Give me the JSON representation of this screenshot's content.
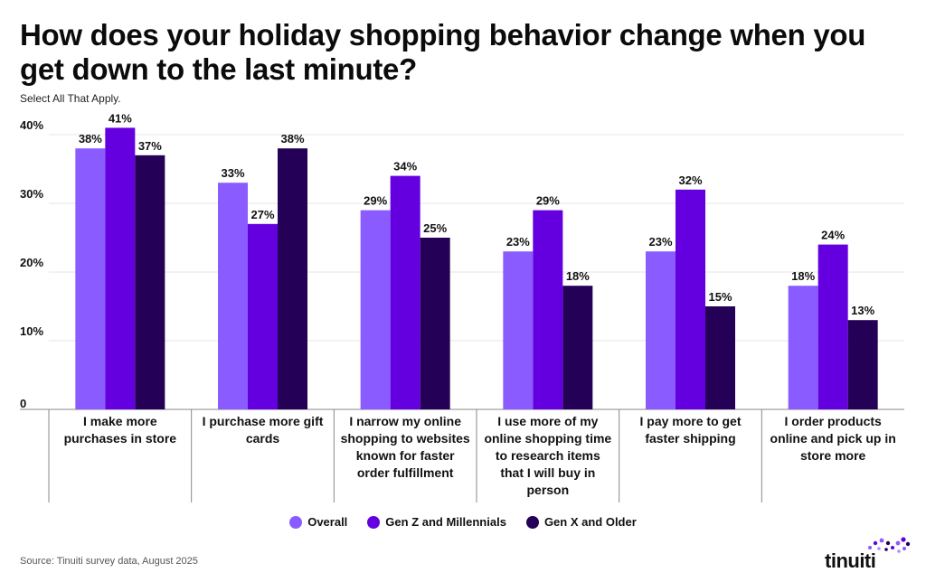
{
  "title": "How does your holiday shopping behavior change when you get down to the last minute?",
  "subtitle": "Select All That Apply.",
  "source": "Source: Tinuiti survey data, August 2025",
  "logo_text": "tinuiti",
  "colors": {
    "overall": "#8a5cff",
    "genz": "#6400e0",
    "genx": "#240057",
    "grid": "#e6e6e6",
    "axis": "#888888"
  },
  "chart_data": {
    "type": "bar",
    "title": "How does your holiday shopping behavior change when you get down to the last minute?",
    "subtitle": "Select All That Apply.",
    "categories": [
      [
        "I make more",
        "purchases in store"
      ],
      [
        "I purchase more gift",
        "cards"
      ],
      [
        "I narrow my online",
        "shopping to websites",
        "known for faster",
        "order fulfillment"
      ],
      [
        "I use more of my",
        "online shopping time",
        "to research items",
        "that I will buy in",
        "person"
      ],
      [
        "I pay more to get",
        "faster shipping"
      ],
      [
        "I order products",
        "online and pick up in",
        "store more"
      ]
    ],
    "series": [
      {
        "name": "Overall",
        "values": [
          38,
          33,
          29,
          23,
          23,
          18
        ]
      },
      {
        "name": "Gen Z and Millennials",
        "values": [
          41,
          27,
          34,
          29,
          32,
          24
        ]
      },
      {
        "name": "Gen X and Older",
        "values": [
          37,
          38,
          25,
          18,
          15,
          13
        ]
      }
    ],
    "yticks": [
      "0",
      "10%",
      "20%",
      "30%",
      "40%"
    ],
    "ylim": [
      0,
      40
    ],
    "value_suffix": "%",
    "legend_position": "bottom",
    "grid": true
  }
}
